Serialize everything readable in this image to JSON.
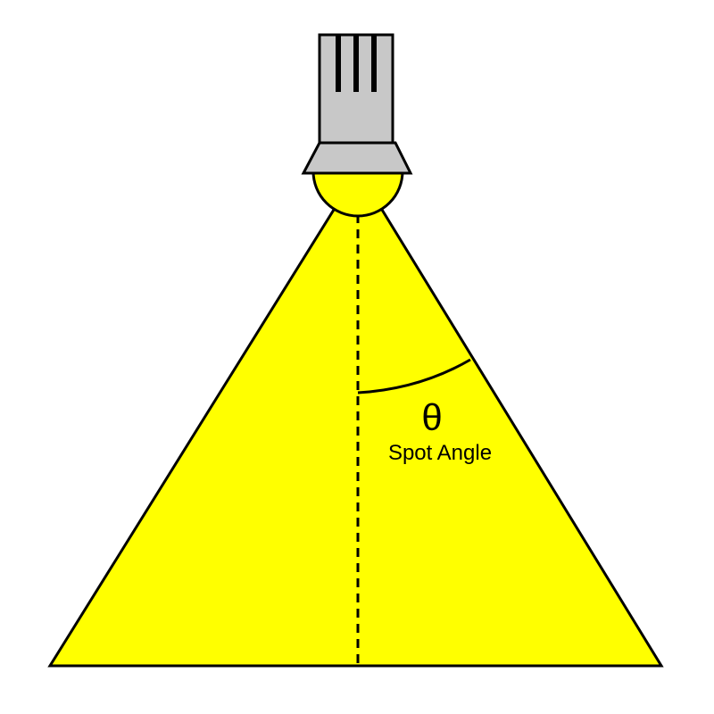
{
  "diagram": {
    "angle_symbol": "θ",
    "angle_label": "Spot Angle"
  },
  "colors": {
    "beam": "#ffff00",
    "fixture_body": "#c8c8c8",
    "outline": "#000000",
    "background": "#ffffff"
  },
  "icons": {
    "fixture": "spotlight-fixture-icon"
  }
}
